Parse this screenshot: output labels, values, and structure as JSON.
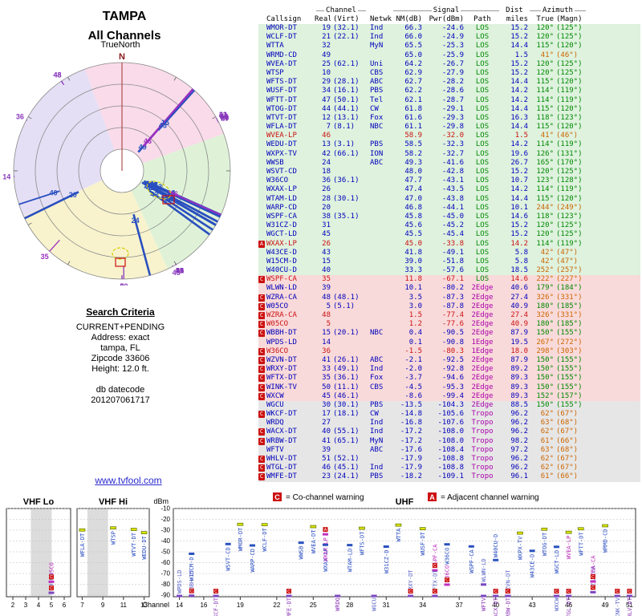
{
  "header": {
    "title": "TAMPA",
    "subtitle": "All Channels",
    "orientation": "TrueNorth",
    "north": "N"
  },
  "search": {
    "heading": "Search Criteria",
    "lines": [
      "CURRENT+PENDING",
      "Address: exact",
      "tampa, FL",
      "Zipcode 33606",
      "Height: 12.0 ft."
    ],
    "datecode_label": "db datecode",
    "datecode": "201207061717"
  },
  "link": "www.tvfool.com",
  "table_headers": {
    "channel_group": "Channel",
    "signal_group": "Signal",
    "dist_group": "Dist",
    "azimuth_group": "Azimuth",
    "callsign": "Callsign",
    "real": "Real",
    "virt": "(Virt)",
    "netwk": "Netwk",
    "nm": "NM(dB)",
    "pwr": "Pwr(dBm)",
    "path": "Path",
    "miles": "miles",
    "true": "True",
    "magn": "(Magn)"
  },
  "legend": {
    "co": "C",
    "co_text": "= Co-channel warning",
    "adj": "A",
    "adj_text": "= Adjacent channel warning"
  },
  "spectrum_axes": {
    "ylabel": "dBm",
    "xlabel": "Channel",
    "dbm_ticks": [
      -10,
      -20,
      -30,
      -40,
      -50,
      -60,
      -70,
      -80,
      -90
    ],
    "bands": [
      {
        "name": "VHF Lo",
        "min": 2,
        "max": 6,
        "ticks": [
          2,
          3,
          4,
          5,
          6
        ]
      },
      {
        "name": "VHF Hi",
        "min": 7,
        "max": 13,
        "ticks": [
          7,
          9,
          11,
          13
        ]
      },
      {
        "name": "UHF",
        "min": 14,
        "max": 51,
        "ticks": [
          14,
          16,
          19,
          22,
          25,
          28,
          31,
          34,
          37,
          40,
          43,
          46,
          49,
          51
        ]
      }
    ]
  },
  "chart_data": {
    "type": "table",
    "title": "TAMPA - All Channels",
    "description": "TV signal analysis report: polar plot of stations by azimuth and signal margin, station table, and power-vs-channel spectrum",
    "columns": [
      "Callsign",
      "Real",
      "(Virt)",
      "Netwk",
      "NM(dB)",
      "Pwr(dBm)",
      "Path",
      "Dist miles",
      "True",
      "(Magn)"
    ],
    "polar": {
      "rings": 5,
      "note": "channel numbers plotted at true azimuth, radius by signal margin"
    },
    "spectrum": {
      "ylim": [
        -90,
        -10
      ],
      "note": "power (dBm) vs RF channel in VHF Lo / VHF Hi / UHF bands"
    },
    "stations": [
      {
        "cs": "WMOR-DT",
        "re": "19",
        "vi": "(32.1)",
        "nw": "Ind",
        "nm": "66.3",
        "pw": "-24.6",
        "pa": "LOS",
        "mi": "15.2",
        "at": 120,
        "am": 125
      },
      {
        "cs": "WCLF-DT",
        "re": "21",
        "vi": "(22.1)",
        "nw": "Ind",
        "nm": "66.0",
        "pw": "-24.9",
        "pa": "LOS",
        "mi": "15.2",
        "at": 120,
        "am": 125
      },
      {
        "cs": "WTTA",
        "re": "32",
        "vi": "",
        "nw": "MyN",
        "nm": "65.5",
        "pw": "-25.3",
        "pa": "LOS",
        "mi": "14.4",
        "at": 115,
        "am": 120
      },
      {
        "cs": "WRMD-CD",
        "re": "49",
        "vi": "",
        "nw": "",
        "nm": "65.0",
        "pw": "-25.9",
        "pa": "LOS",
        "mi": "1.5",
        "at": 41,
        "am": 46
      },
      {
        "cs": "WVEA-DT",
        "re": "25",
        "vi": "(62.1)",
        "nw": "Uni",
        "nm": "64.2",
        "pw": "-26.7",
        "pa": "LOS",
        "mi": "15.2",
        "at": 120,
        "am": 125
      },
      {
        "cs": "WTSP",
        "re": "10",
        "vi": "",
        "nw": "CBS",
        "nm": "62.9",
        "pw": "-27.9",
        "pa": "LOS",
        "mi": "15.2",
        "at": 120,
        "am": 125
      },
      {
        "cs": "WFTS-DT",
        "re": "29",
        "vi": "(28.1)",
        "nw": "ABC",
        "nm": "62.7",
        "pw": "-28.2",
        "pa": "LOS",
        "mi": "14.4",
        "at": 115,
        "am": 120
      },
      {
        "cs": "WUSF-DT",
        "re": "34",
        "vi": "(16.1)",
        "nw": "PBS",
        "nm": "62.2",
        "pw": "-28.6",
        "pa": "LOS",
        "mi": "14.2",
        "at": 114,
        "am": 119
      },
      {
        "cs": "WFTT-DT",
        "re": "47",
        "vi": "(50.1)",
        "nw": "Tel",
        "nm": "62.1",
        "pw": "-28.7",
        "pa": "LOS",
        "mi": "14.2",
        "at": 114,
        "am": 119
      },
      {
        "cs": "WTOG-DT",
        "re": "44",
        "vi": "(44.1)",
        "nw": "CW",
        "nm": "61.8",
        "pw": "-29.1",
        "pa": "LOS",
        "mi": "14.4",
        "at": 115,
        "am": 120
      },
      {
        "cs": "WTVT-DT",
        "re": "12",
        "vi": "(13.1)",
        "nw": "Fox",
        "nm": "61.6",
        "pw": "-29.3",
        "pa": "LOS",
        "mi": "16.3",
        "at": 118,
        "am": 123
      },
      {
        "cs": "WFLA-DT",
        "re": "7",
        "vi": "(8.1)",
        "nw": "NBC",
        "nm": "61.1",
        "pw": "-29.8",
        "pa": "LOS",
        "mi": "14.4",
        "at": 115,
        "am": 120
      },
      {
        "cs": "WVEA-LP",
        "re": "46",
        "vi": "",
        "nw": "",
        "nm": "58.9",
        "pw": "-32.0",
        "pa": "LOS",
        "mi": "1.5",
        "at": 41,
        "am": 46,
        "red": true
      },
      {
        "cs": "WEDU-DT",
        "re": "13",
        "vi": "(3.1)",
        "nw": "PBS",
        "nm": "58.5",
        "pw": "-32.3",
        "pa": "LOS",
        "mi": "14.2",
        "at": 114,
        "am": 119
      },
      {
        "cs": "WXPX-TV",
        "re": "42",
        "vi": "(66.1)",
        "nw": "ION",
        "nm": "58.2",
        "pw": "-32.7",
        "pa": "LOS",
        "mi": "19.6",
        "at": 126,
        "am": 131
      },
      {
        "cs": "WWSB",
        "re": "24",
        "vi": "",
        "nw": "ABC",
        "nm": "49.3",
        "pw": "-41.6",
        "pa": "LOS",
        "mi": "26.7",
        "at": 165,
        "am": 170
      },
      {
        "cs": "WSVT-CD",
        "re": "18",
        "vi": "",
        "nw": "",
        "nm": "48.0",
        "pw": "-42.8",
        "pa": "LOS",
        "mi": "15.2",
        "at": 120,
        "am": 125
      },
      {
        "cs": "W36CO",
        "re": "36",
        "vi": "(36.1)",
        "nw": "",
        "nm": "47.7",
        "pw": "-43.1",
        "pa": "LOS",
        "mi": "10.7",
        "at": 123,
        "am": 128
      },
      {
        "cs": "WXAX-LP",
        "re": "26",
        "vi": "",
        "nw": "",
        "nm": "47.4",
        "pw": "-43.5",
        "pa": "LOS",
        "mi": "14.2",
        "at": 114,
        "am": 119
      },
      {
        "cs": "WTAM-LD",
        "re": "28",
        "vi": "(30.1)",
        "nw": "",
        "nm": "47.0",
        "pw": "-43.8",
        "pa": "LOS",
        "mi": "14.4",
        "at": 115,
        "am": 120
      },
      {
        "cs": "WARP-CD",
        "re": "20",
        "vi": "",
        "nw": "",
        "nm": "46.8",
        "pw": "-44.1",
        "pa": "LOS",
        "mi": "10.1",
        "at": 244,
        "am": 249
      },
      {
        "cs": "WSPF-CA",
        "re": "38",
        "vi": "(35.1)",
        "nw": "",
        "nm": "45.8",
        "pw": "-45.0",
        "pa": "LOS",
        "mi": "14.6",
        "at": 118,
        "am": 123
      },
      {
        "cs": "W31CZ-D",
        "re": "31",
        "vi": "",
        "nw": "",
        "nm": "45.6",
        "pw": "-45.2",
        "pa": "LOS",
        "mi": "15.2",
        "at": 120,
        "am": 125
      },
      {
        "cs": "WGCT-LD",
        "re": "45",
        "vi": "",
        "nw": "",
        "nm": "45.5",
        "pw": "-45.4",
        "pa": "LOS",
        "mi": "15.2",
        "at": 120,
        "am": 125
      },
      {
        "cs": "WXAX-LP",
        "re": "26",
        "vi": "",
        "nw": "",
        "nm": "45.0",
        "pw": "-33.8",
        "pa": "LOS",
        "mi": "14.2",
        "at": 114,
        "am": 119,
        "red": true,
        "w": "A"
      },
      {
        "cs": "W43CE-D",
        "re": "43",
        "vi": "",
        "nw": "",
        "nm": "41.8",
        "pw": "-49.1",
        "pa": "LOS",
        "mi": "5.8",
        "at": 42,
        "am": 47
      },
      {
        "cs": "W15CM-D",
        "re": "15",
        "vi": "",
        "nw": "",
        "nm": "39.0",
        "pw": "-51.8",
        "pa": "LOS",
        "mi": "5.8",
        "at": 42,
        "am": 47
      },
      {
        "cs": "W40CU-D",
        "re": "40",
        "vi": "",
        "nw": "",
        "nm": "33.3",
        "pw": "-57.6",
        "pa": "LOS",
        "mi": "18.5",
        "at": 252,
        "am": 257
      },
      {
        "cs": "WSPF-CA",
        "re": "35",
        "vi": "",
        "nw": "",
        "nm": "11.8",
        "pw": "-67.1",
        "pa": "LOS",
        "mi": "14.6",
        "at": 222,
        "am": 227,
        "t": "p",
        "red": true,
        "w": "C"
      },
      {
        "cs": "WLWN-LD",
        "re": "39",
        "vi": "",
        "nw": "",
        "nm": "10.1",
        "pw": "-80.2",
        "pa": "2Edge",
        "mi": "40.6",
        "at": 179,
        "am": 184,
        "t": "p"
      },
      {
        "cs": "WZRA-CA",
        "re": "48",
        "vi": "(48.1)",
        "nw": "",
        "nm": "3.5",
        "pw": "-87.3",
        "pa": "2Edge",
        "mi": "27.4",
        "at": 326,
        "am": 331,
        "t": "p",
        "w": "C"
      },
      {
        "cs": "W05CO",
        "re": "5",
        "vi": "(5.1)",
        "nw": "",
        "nm": "3.0",
        "pw": "-87.8",
        "pa": "2Edge",
        "mi": "40.9",
        "at": 180,
        "am": 185,
        "t": "p",
        "w": "C"
      },
      {
        "cs": "WZRA-CA",
        "re": "48",
        "vi": "",
        "nw": "",
        "nm": "1.5",
        "pw": "-77.4",
        "pa": "2Edge",
        "mi": "27.4",
        "at": 326,
        "am": 331,
        "t": "p",
        "red": true,
        "w": "C"
      },
      {
        "cs": "W05CO",
        "re": "5",
        "vi": "",
        "nw": "",
        "nm": "1.2",
        "pw": "-77.6",
        "pa": "2Edge",
        "mi": "40.9",
        "at": 180,
        "am": 185,
        "t": "p",
        "red": true,
        "w": "C"
      },
      {
        "cs": "WBBH-DT",
        "re": "15",
        "vi": "(20.1)",
        "nw": "NBC",
        "nm": "0.4",
        "pw": "-90.5",
        "pa": "2Edge",
        "mi": "87.9",
        "at": 150,
        "am": 155,
        "t": "p",
        "w": "C"
      },
      {
        "cs": "WPDS-LD",
        "re": "14",
        "vi": "",
        "nw": "",
        "nm": "0.1",
        "pw": "-90.8",
        "pa": "1Edge",
        "mi": "19.5",
        "at": 267,
        "am": 272,
        "t": "p"
      },
      {
        "cs": "W36CO",
        "re": "36",
        "vi": "",
        "nw": "",
        "nm": "-1.5",
        "pw": "-80.3",
        "pa": "1Edge",
        "mi": "18.0",
        "at": 298,
        "am": 303,
        "t": "p",
        "red": true,
        "w": "C"
      },
      {
        "cs": "WZVN-DT",
        "re": "41",
        "vi": "(26.1)",
        "nw": "ABC",
        "nm": "-2.1",
        "pw": "-92.5",
        "pa": "2Edge",
        "mi": "87.9",
        "at": 150,
        "am": 155,
        "t": "p",
        "w": "C"
      },
      {
        "cs": "WRXY-DT",
        "re": "33",
        "vi": "(49.1)",
        "nw": "Ind",
        "nm": "-2.0",
        "pw": "-92.8",
        "pa": "2Edge",
        "mi": "89.2",
        "at": 150,
        "am": 155,
        "t": "p",
        "w": "C"
      },
      {
        "cs": "WFTX-DT",
        "re": "35",
        "vi": "(36.1)",
        "nw": "Fox",
        "nm": "-3.7",
        "pw": "-94.6",
        "pa": "2Edge",
        "mi": "89.3",
        "at": 150,
        "am": 155,
        "t": "p",
        "w": "C"
      },
      {
        "cs": "WINK-TV",
        "re": "50",
        "vi": "(11.1)",
        "nw": "CBS",
        "nm": "-4.5",
        "pw": "-95.3",
        "pa": "2Edge",
        "mi": "89.3",
        "at": 150,
        "am": 155,
        "t": "p",
        "w": "C"
      },
      {
        "cs": "WXCW",
        "re": "45",
        "vi": "(46.1)",
        "nw": "",
        "nm": "-8.6",
        "pw": "-99.4",
        "pa": "2Edge",
        "mi": "89.3",
        "at": 152,
        "am": 157,
        "t": "p",
        "w": "C"
      },
      {
        "cs": "WGCU",
        "re": "30",
        "vi": "(30.1)",
        "nw": "PBS",
        "nm": "-13.5",
        "pw": "-104.3",
        "pa": "2Edge",
        "mi": "88.5",
        "at": 150,
        "am": 155,
        "t": "y"
      },
      {
        "cs": "WKCF-DT",
        "re": "17",
        "vi": "(18.1)",
        "nw": "CW",
        "nm": "-14.8",
        "pw": "-105.6",
        "pa": "Tropo",
        "mi": "96.2",
        "at": 62,
        "am": 67,
        "t": "y",
        "w": "C"
      },
      {
        "cs": "WRDQ",
        "re": "27",
        "vi": "",
        "nw": "Ind",
        "nm": "-16.8",
        "pw": "-107.6",
        "pa": "Tropo",
        "mi": "96.2",
        "at": 63,
        "am": 68,
        "t": "y"
      },
      {
        "cs": "WACX-DT",
        "re": "40",
        "vi": "(55.1)",
        "nw": "Ind",
        "nm": "-17.2",
        "pw": "-108.0",
        "pa": "Tropo",
        "mi": "96.2",
        "at": 62,
        "am": 67,
        "t": "y",
        "w": "C"
      },
      {
        "cs": "WRBW-DT",
        "re": "41",
        "vi": "(65.1)",
        "nw": "MyN",
        "nm": "-17.2",
        "pw": "-108.0",
        "pa": "Tropo",
        "mi": "98.2",
        "at": 61,
        "am": 66,
        "t": "y",
        "w": "C"
      },
      {
        "cs": "WFTV",
        "re": "39",
        "vi": "",
        "nw": "ABC",
        "nm": "-17.6",
        "pw": "-108.4",
        "pa": "Tropo",
        "mi": "97.2",
        "at": 63,
        "am": 68,
        "t": "y"
      },
      {
        "cs": "WHLV-DT",
        "re": "51",
        "vi": "(52.1)",
        "nw": "",
        "nm": "-17.9",
        "pw": "-108.8",
        "pa": "Tropo",
        "mi": "96.2",
        "at": 62,
        "am": 67,
        "t": "y",
        "w": "C"
      },
      {
        "cs": "WTGL-DT",
        "re": "46",
        "vi": "(45.1)",
        "nw": "Ind",
        "nm": "-17.9",
        "pw": "-108.8",
        "pa": "Tropo",
        "mi": "96.2",
        "at": 62,
        "am": 67,
        "t": "y",
        "w": "C"
      },
      {
        "cs": "WMFE-DT",
        "re": "23",
        "vi": "(24.1)",
        "nw": "PBS",
        "nm": "-18.2",
        "pw": "-109.1",
        "pa": "Tropo",
        "mi": "96.1",
        "at": 61,
        "am": 66,
        "t": "y",
        "w": "C"
      }
    ]
  },
  "colors": {
    "text_blue": "#0000bb",
    "text_red": "#cc1111",
    "path_los": "#008800",
    "path_other": "#aa00aa",
    "az_green": "#008800",
    "az_orange": "#cc6600",
    "row_green": "#def2de",
    "row_pink": "#f9dada",
    "row_gray": "#e6e6e6",
    "warning_red": "#cc1111"
  }
}
